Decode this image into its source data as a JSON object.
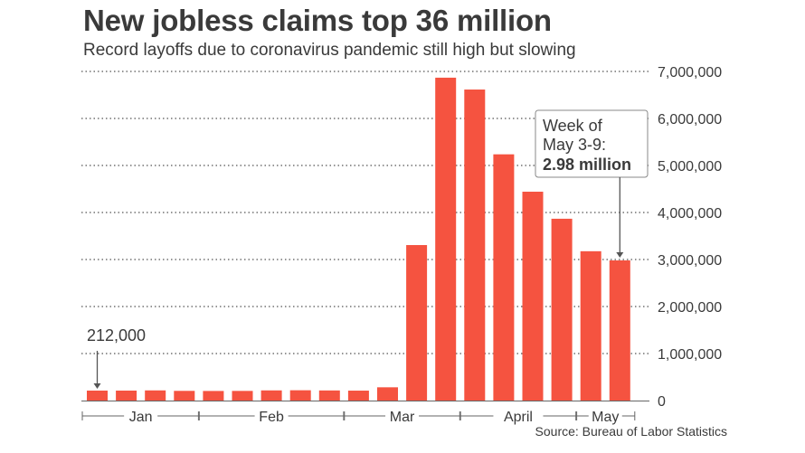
{
  "chart_data": {
    "type": "bar",
    "title": "New jobless claims top 36 million",
    "subtitle": "Record layoffs due to coronavirus pandemic still high but slowing",
    "values": [
      212000,
      212000,
      216000,
      206000,
      204000,
      205000,
      216000,
      219000,
      215000,
      211000,
      282000,
      3307000,
      6867000,
      6615000,
      5237000,
      4442000,
      3867000,
      3176000,
      2981000
    ],
    "ylim": [
      0,
      7000000
    ],
    "yticks": [
      {
        "value": 0,
        "label": "0"
      },
      {
        "value": 1000000,
        "label": "1,000,000"
      },
      {
        "value": 2000000,
        "label": "2,000,000"
      },
      {
        "value": 3000000,
        "label": "3,000,000"
      },
      {
        "value": 4000000,
        "label": "4,000,000"
      },
      {
        "value": 5000000,
        "label": "5,000,000"
      },
      {
        "value": 6000000,
        "label": "6,000,000"
      },
      {
        "value": 7000000,
        "label": "7,000,000"
      }
    ],
    "months": [
      {
        "label": "Jan",
        "start": 0,
        "end": 3
      },
      {
        "label": "Feb",
        "start": 4,
        "end": 8
      },
      {
        "label": "Mar",
        "start": 9,
        "end": 12
      },
      {
        "label": "April",
        "start": 13,
        "end": 16
      },
      {
        "label": "May",
        "start": 17,
        "end": 18
      }
    ],
    "grid": true,
    "bar_color": "#f55340",
    "annotations": {
      "first": {
        "label": "212,000",
        "index": 0
      },
      "last": {
        "line1": "Week of",
        "line2": "May 3-9:",
        "line3": "2.98 million",
        "index": 18
      }
    },
    "source": "Source: Bureau of Labor Statistics"
  }
}
